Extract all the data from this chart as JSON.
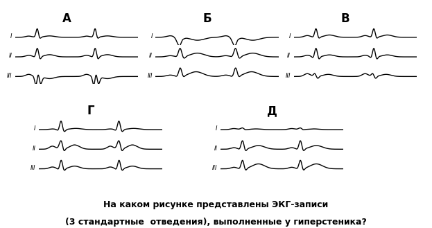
{
  "title_line1": "На каком рисунке представлены ЭКГ-записи",
  "title_line2": "(3 стандартные  отведения), выполненные у гиперстеника?",
  "labels": [
    "А",
    "Б",
    "В",
    "Г",
    "Д"
  ],
  "bg_color": "#ffffff",
  "line_color": "#000000",
  "title_fontsize": 9.0,
  "label_fontsize": 12
}
